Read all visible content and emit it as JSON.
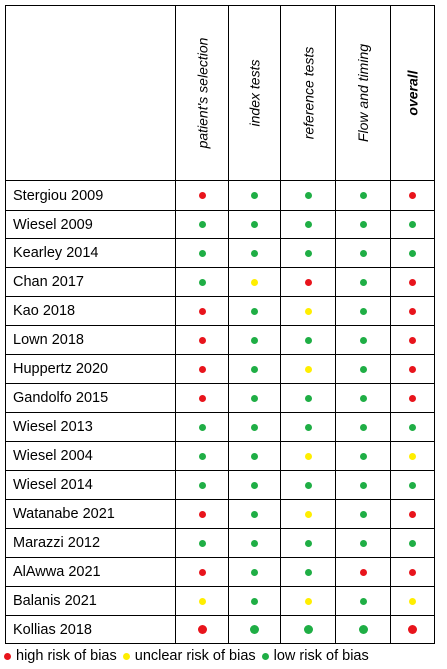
{
  "colors": {
    "high": "#e8141c",
    "unclear": "#ffee00",
    "low": "#1fae45"
  },
  "columns": [
    {
      "label": "patient's selection",
      "bold": false
    },
    {
      "label": "index tests",
      "bold": false
    },
    {
      "label": "reference tests",
      "bold": false
    },
    {
      "label": "Flow and timing",
      "bold": false
    },
    {
      "label": "overall",
      "bold": true
    }
  ],
  "studies": [
    {
      "name": "Stergiou 2009",
      "ratings": [
        "high",
        "low",
        "low",
        "low",
        "high"
      ]
    },
    {
      "name": "Wiesel 2009",
      "ratings": [
        "low",
        "low",
        "low",
        "low",
        "low"
      ]
    },
    {
      "name": "Kearley 2014",
      "ratings": [
        "low",
        "low",
        "low",
        "low",
        "low"
      ]
    },
    {
      "name": "Chan 2017",
      "ratings": [
        "low",
        "unclear",
        "high",
        "low",
        "high"
      ]
    },
    {
      "name": "Kao 2018",
      "ratings": [
        "high",
        "low",
        "unclear",
        "low",
        "high"
      ]
    },
    {
      "name": "Lown 2018",
      "ratings": [
        "high",
        "low",
        "low",
        "low",
        "high"
      ]
    },
    {
      "name": "Huppertz 2020",
      "ratings": [
        "high",
        "low",
        "unclear",
        "low",
        "high"
      ]
    },
    {
      "name": "Gandolfo 2015",
      "ratings": [
        "high",
        "low",
        "low",
        "low",
        "high"
      ]
    },
    {
      "name": "Wiesel 2013",
      "ratings": [
        "low",
        "low",
        "low",
        "low",
        "low"
      ]
    },
    {
      "name": "Wiesel 2004",
      "ratings": [
        "low",
        "low",
        "unclear",
        "low",
        "unclear"
      ]
    },
    {
      "name": "Wiesel 2014",
      "ratings": [
        "low",
        "low",
        "low",
        "low",
        "low"
      ]
    },
    {
      "name": "Watanabe 2021",
      "ratings": [
        "high",
        "low",
        "unclear",
        "low",
        "high"
      ]
    },
    {
      "name": "Marazzi 2012",
      "ratings": [
        "low",
        "low",
        "low",
        "low",
        "low"
      ]
    },
    {
      "name": "AlAwwa 2021",
      "ratings": [
        "high",
        "low",
        "low",
        "high",
        "high"
      ]
    },
    {
      "name": "Balanis 2021",
      "ratings": [
        "unclear",
        "low",
        "unclear",
        "low",
        "unclear"
      ]
    },
    {
      "name": "Kollias 2018",
      "ratings": [
        "high",
        "low",
        "low",
        "low",
        "high"
      ]
    }
  ],
  "legend": [
    {
      "key": "high",
      "label": "high risk of bias"
    },
    {
      "key": "unclear",
      "label": "unclear risk of bias"
    },
    {
      "key": "low",
      "label": "low risk of bias"
    }
  ]
}
